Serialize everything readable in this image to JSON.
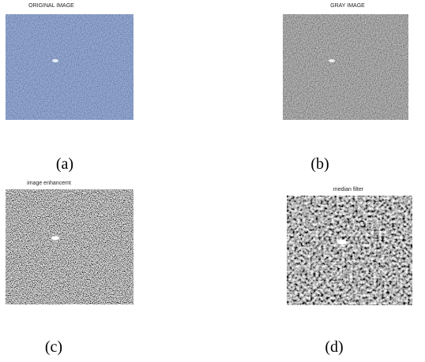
{
  "panels": [
    {
      "title": "ORIGINAL IMAGE",
      "caption": "(a)"
    },
    {
      "title": "GRAY IMAGE",
      "caption": "(b)"
    },
    {
      "title": "image enhancemt",
      "caption": "(c)"
    },
    {
      "title": "median filter",
      "caption": "(d)"
    }
  ]
}
